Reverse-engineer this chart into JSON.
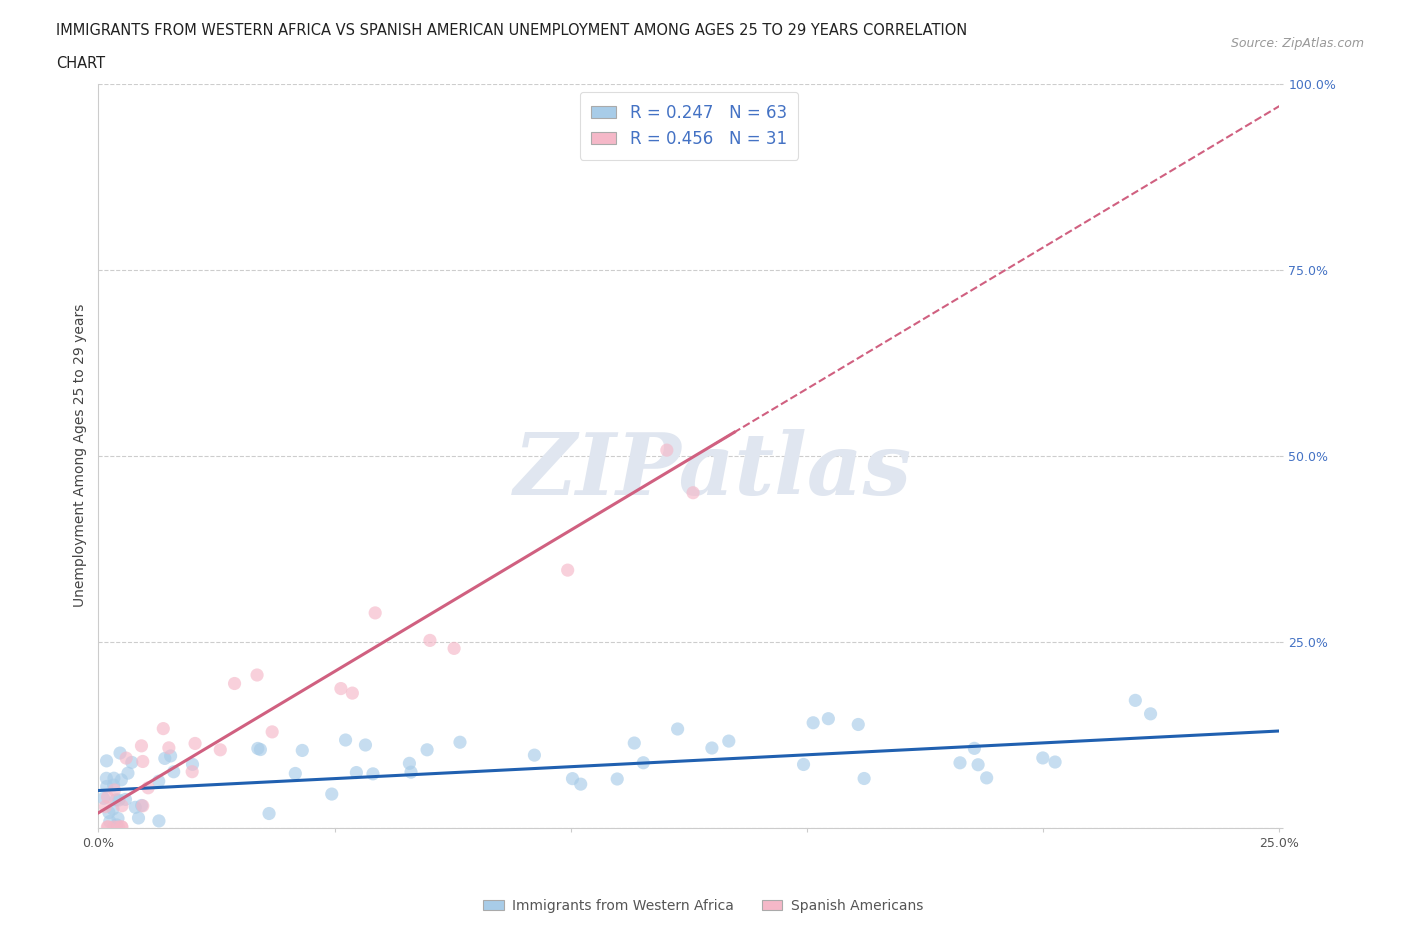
{
  "title_line1": "IMMIGRANTS FROM WESTERN AFRICA VS SPANISH AMERICAN UNEMPLOYMENT AMONG AGES 25 TO 29 YEARS CORRELATION",
  "title_line2": "CHART",
  "source": "Source: ZipAtlas.com",
  "ylabel": "Unemployment Among Ages 25 to 29 years",
  "xlim": [
    0.0,
    0.25
  ],
  "ylim": [
    0.0,
    1.0
  ],
  "blue_R": 0.247,
  "blue_N": 63,
  "pink_R": 0.456,
  "pink_N": 31,
  "blue_color": "#a8cce8",
  "pink_color": "#f5b8c8",
  "blue_line_color": "#2060b0",
  "pink_line_color": "#d06080",
  "background_color": "#ffffff",
  "grid_color": "#c8c8c8",
  "watermark_color": "#e0e6f0",
  "blue_scatter_seed": 101,
  "pink_scatter_seed": 202
}
